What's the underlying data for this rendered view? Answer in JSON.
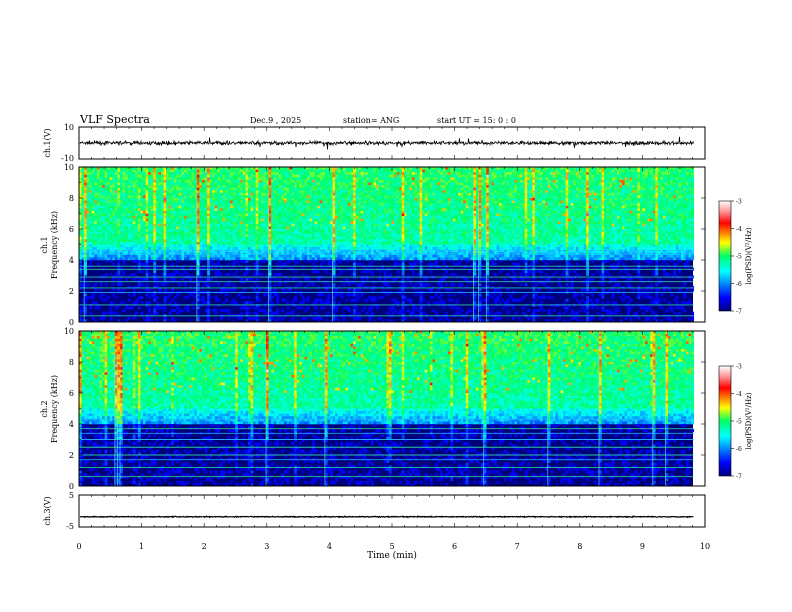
{
  "chart_data": [
    {
      "type": "line",
      "panel": "ch1-waveform",
      "title": "VLF Spectra",
      "header": {
        "date": "Dec.9 , 2025",
        "station": "station= ANG",
        "start": "start UT = 15: 0 : 0"
      },
      "ylabel": "ch.1(V)",
      "ylim": [
        -10,
        10
      ],
      "yticks": [
        "10",
        "-10"
      ],
      "series": [
        {
          "name": "ch.1 amplitude",
          "mean": 0,
          "noise": 1.0
        }
      ]
    },
    {
      "type": "heatmap",
      "panel": "ch1-spectrogram",
      "ylabel": "ch.1 Frequency (kHz)",
      "ylabel_line1": "ch.1",
      "ylabel_line2": "Frequency (kHz)",
      "ylim": [
        0,
        10
      ],
      "yticks": [
        "0",
        "2",
        "4",
        "6",
        "8",
        "10"
      ],
      "lines_khz": [
        0.4,
        1.1,
        1.9,
        2.2,
        2.6,
        2.9,
        3.4,
        3.6,
        4.4,
        4.6
      ],
      "colorbar": {
        "label": "log(PSD)(V²/Hz)",
        "range": [
          -7,
          -3
        ],
        "ticks": [
          "-3",
          "-4",
          "-5",
          "-6",
          "-7"
        ]
      }
    },
    {
      "type": "heatmap",
      "panel": "ch2-spectrogram",
      "ylabel": "ch.2 Frequency (kHz)",
      "ylabel_line1": "ch.2",
      "ylabel_line2": "Frequency (kHz)",
      "ylim": [
        0,
        10
      ],
      "yticks": [
        "0",
        "2",
        "4",
        "6",
        "8",
        "10"
      ],
      "lines_khz": [
        0.6,
        1.2,
        1.7,
        2.0,
        2.5,
        3.0,
        3.4,
        3.7,
        4.3
      ],
      "colorbar": {
        "label": "log(PSD)(V²/Hz)",
        "range": [
          -7,
          -3
        ],
        "ticks": [
          "-3",
          "-4",
          "-5",
          "-6",
          "-7"
        ]
      }
    },
    {
      "type": "line",
      "panel": "ch3-waveform",
      "ylabel": "ch.3(V)",
      "ylim": [
        -5,
        5
      ],
      "yticks": [
        "5",
        "-5"
      ],
      "series": [
        {
          "name": "ch.3 amplitude",
          "mean": -1.8,
          "noise": 0.12
        }
      ]
    }
  ],
  "xaxis": {
    "label": "Time (min)",
    "range": [
      0,
      10
    ],
    "ticks": [
      "0",
      "1",
      "2",
      "3",
      "4",
      "5",
      "6",
      "7",
      "8",
      "9",
      "10"
    ],
    "data_end": 9.82
  }
}
